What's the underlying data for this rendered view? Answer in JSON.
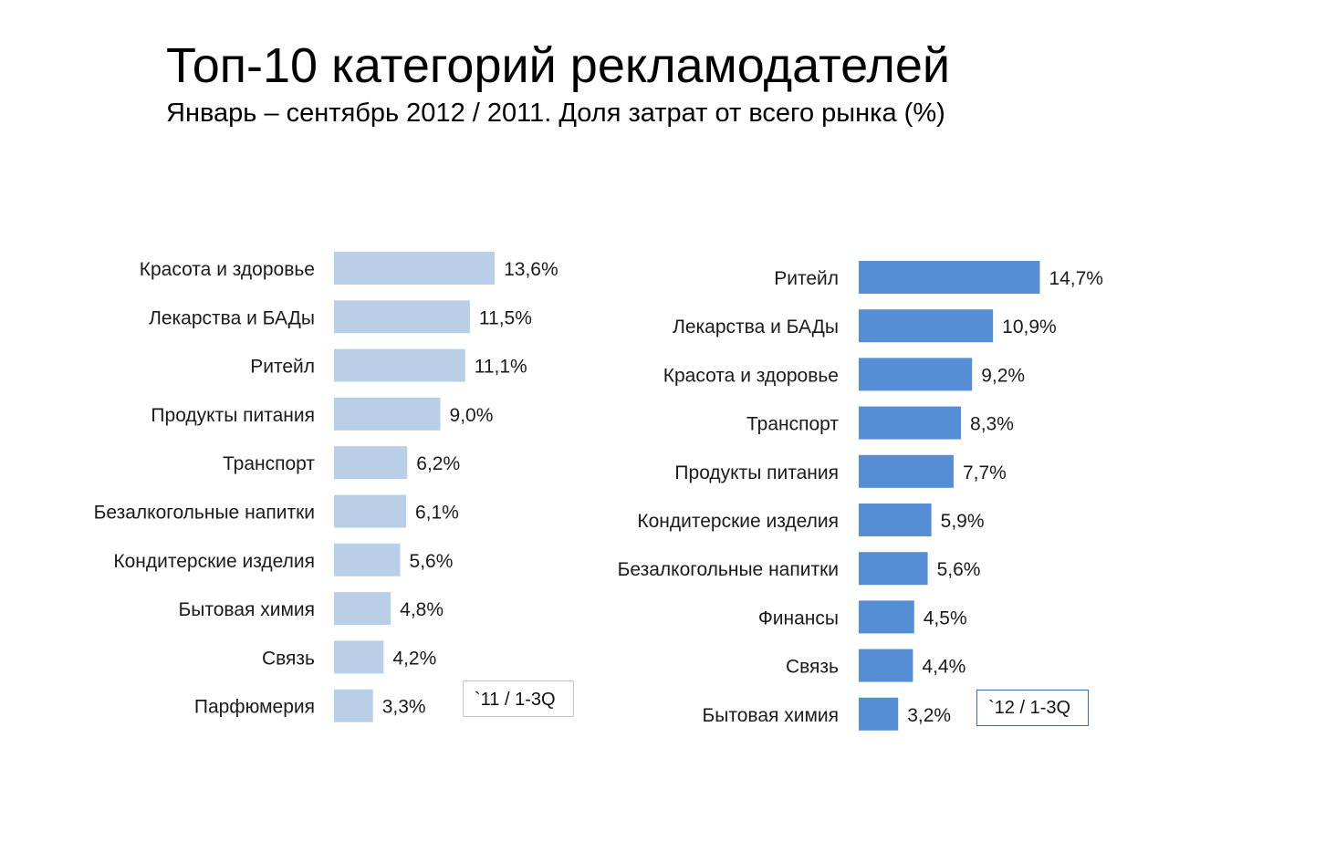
{
  "page": {
    "title": "Топ-10 категорий рекламодателей",
    "subtitle": "Январь – сентябрь 2012 / 2011. Доля затрат от всего рынка (%)"
  },
  "chart_data": [
    {
      "type": "bar",
      "orientation": "horizontal",
      "period_label": "`11 / 1-3Q",
      "color": "#b9cfe8",
      "xlim": [
        0,
        16
      ],
      "categories": [
        "Красота и здоровье",
        "Лекарства и БАДы",
        "Ритейл",
        "Продукты питания",
        "Транспорт",
        "Безалкогольные напитки",
        "Кондитерские изделия",
        "Бытовая химия",
        "Связь",
        "Парфюмерия"
      ],
      "values": [
        13.6,
        11.5,
        11.1,
        9.0,
        6.2,
        6.1,
        5.6,
        4.8,
        4.2,
        3.3
      ],
      "value_labels": [
        "13,6%",
        "11,5%",
        "11,1%",
        "9,0%",
        "6,2%",
        "6,1%",
        "5,6%",
        "4,8%",
        "4,2%",
        "3,3%"
      ]
    },
    {
      "type": "bar",
      "orientation": "horizontal",
      "period_label": "`12 / 1-3Q",
      "color": "#558ed5",
      "xlim": [
        0,
        16
      ],
      "categories": [
        "Ритейл",
        "Лекарства и БАДы",
        "Красота и здоровье",
        "Транспорт",
        "Продукты питания",
        "Кондитерские изделия",
        "Безалкогольные напитки",
        "Финансы",
        "Связь",
        "Бытовая химия"
      ],
      "values": [
        14.7,
        10.9,
        9.2,
        8.3,
        7.7,
        5.9,
        5.6,
        4.5,
        4.4,
        3.2
      ],
      "value_labels": [
        "14,7%",
        "10,9%",
        "9,2%",
        "8,3%",
        "7,7%",
        "5,9%",
        "5,6%",
        "4,5%",
        "4,4%",
        "3,2%"
      ]
    }
  ]
}
